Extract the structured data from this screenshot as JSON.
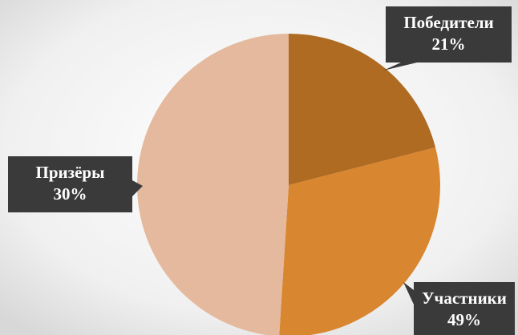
{
  "chart_data": {
    "type": "pie",
    "categories": [
      "Победители",
      "Призёры",
      "Участники"
    ],
    "values": [
      21,
      30,
      49
    ],
    "value_labels": [
      "21%",
      "30%",
      "49%"
    ],
    "colors": [
      "#b06b22",
      "#d8862f",
      "#e4b99d"
    ]
  }
}
